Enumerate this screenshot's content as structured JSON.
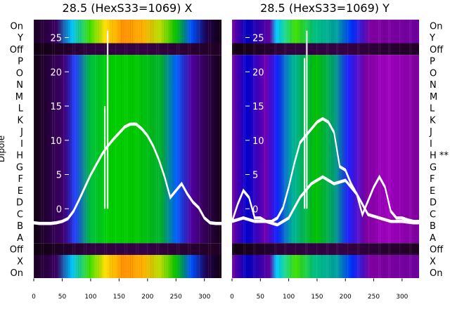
{
  "chart_data": [
    {
      "type": "heatmap",
      "title": "28.5 (HexS33=1069) X",
      "ylabel": "Dipole",
      "x_ticks": [
        0,
        50,
        100,
        150,
        200,
        250,
        300
      ],
      "x_range": [
        0,
        330
      ],
      "rows": [
        "On",
        "Y",
        "Off",
        "P",
        "O",
        "N",
        "M",
        "L",
        "K",
        "J",
        "I",
        "H",
        "G",
        "F",
        "E",
        "D",
        "C",
        "B",
        "A",
        "Off",
        "X",
        "On"
      ],
      "inner_y_ticks": [
        25,
        20,
        15,
        10,
        5,
        0
      ],
      "inner_y_range": [
        -3,
        27
      ],
      "heat_bands": [
        {
          "from": "On",
          "to": "Y",
          "level": "bright"
        },
        {
          "from": "Off",
          "to": "Off",
          "level": "dark"
        },
        {
          "from": "P",
          "to": "A",
          "level": "medium"
        },
        {
          "from": "Off",
          "to": "Off",
          "level": "dark"
        },
        {
          "from": "X",
          "to": "On",
          "level": "bright"
        }
      ],
      "curves": [
        {
          "x": [
            0,
            10,
            20,
            30,
            40,
            50,
            60,
            70,
            80,
            90,
            100,
            110,
            120,
            130,
            140,
            150,
            160,
            170,
            180,
            190,
            200,
            210,
            220,
            230,
            240,
            250,
            260,
            270,
            280,
            290,
            300,
            310,
            320,
            330
          ],
          "y": [
            -2.2,
            -2.3,
            -2.3,
            -2.3,
            -2.2,
            -2,
            -1.6,
            -0.5,
            1.2,
            3,
            4.8,
            6.3,
            7.8,
            9,
            10,
            10.9,
            11.8,
            12.2,
            12.2,
            11.5,
            10.5,
            9,
            7,
            4.5,
            1.5,
            2.5,
            3.5,
            2,
            0.8,
            0,
            -1.5,
            -2.2,
            -2.3,
            -2.3
          ]
        }
      ],
      "spikes": [
        {
          "x": 130,
          "y": 26
        },
        {
          "x": 125,
          "y": 15
        }
      ]
    },
    {
      "type": "heatmap",
      "title": "28.5 (HexS33=1069) Y",
      "x_ticks": [
        0,
        50,
        100,
        150,
        200,
        250,
        300
      ],
      "x_range": [
        0,
        330
      ],
      "rows": [
        "On",
        "Y",
        "Off",
        "P",
        "O",
        "N",
        "M",
        "L",
        "K",
        "J",
        "I",
        "H **",
        "G",
        "F",
        "E",
        "D",
        "C",
        "B",
        "A",
        "Off",
        "X",
        "On"
      ],
      "inner_y_ticks": [
        25,
        20,
        15,
        10,
        5,
        0
      ],
      "inner_y_range": [
        -3,
        27
      ],
      "heat_bands": [
        {
          "from": "On",
          "to": "Y",
          "level": "bright"
        },
        {
          "from": "Off",
          "to": "Off",
          "level": "dark"
        },
        {
          "from": "P",
          "to": "A",
          "level": "medium"
        },
        {
          "from": "Off",
          "to": "Off",
          "level": "dark"
        },
        {
          "from": "X",
          "to": "On",
          "level": "bright"
        }
      ],
      "curves": [
        {
          "x": [
            0,
            10,
            20,
            30,
            40,
            50,
            60,
            70,
            80,
            90,
            100,
            110,
            120,
            130,
            140,
            150,
            160,
            170,
            180,
            190,
            200,
            210,
            220,
            230,
            240,
            250,
            260,
            270,
            280,
            290,
            300,
            310,
            320,
            330
          ],
          "y": [
            -2,
            0.5,
            2.5,
            1.5,
            -1.5,
            -1.5,
            -2,
            -2,
            -1.5,
            0,
            3,
            6.5,
            9.5,
            10.5,
            11.5,
            12.5,
            13,
            12.5,
            11,
            6,
            5.5,
            3.5,
            2,
            -1,
            1,
            3,
            4.5,
            3,
            -0.5,
            -1.5,
            -1.5,
            -1.8,
            -2,
            -2
          ]
        },
        {
          "x": [
            0,
            20,
            40,
            60,
            80,
            100,
            120,
            140,
            160,
            180,
            200,
            220,
            240,
            260,
            280,
            300,
            320,
            330
          ],
          "y": [
            -2,
            -1.5,
            -2,
            -2,
            -2.5,
            -1.5,
            1.5,
            3.5,
            4.5,
            3.5,
            4,
            2,
            -1,
            -1.5,
            -2,
            -2,
            -2.2,
            -2.2
          ]
        }
      ],
      "spikes": [
        {
          "x": 132,
          "y": 26
        },
        {
          "x": 128,
          "y": 22
        }
      ]
    }
  ]
}
